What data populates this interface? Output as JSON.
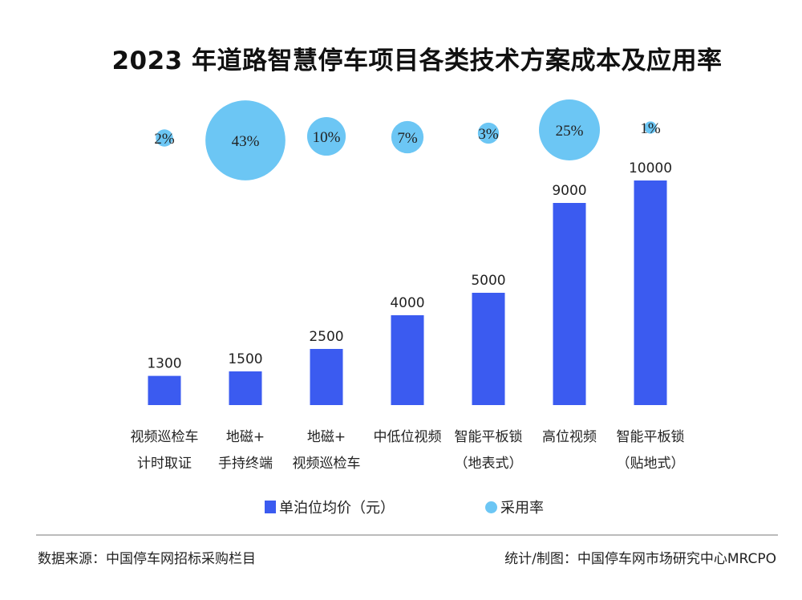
{
  "chart_data": {
    "type": "bar",
    "title": "2023 年道路智慧停车项目各类技术方案成本及应用率",
    "categories": [
      [
        "视频巡检车",
        "计时取证"
      ],
      [
        "地磁+",
        "手持终端"
      ],
      [
        "地磁+",
        "视频巡检车"
      ],
      [
        "中低位视频"
      ],
      [
        "智能平板锁",
        "（地表式）"
      ],
      [
        "高位视频"
      ],
      [
        "智能平板锁",
        "（贴地式）"
      ]
    ],
    "series": [
      {
        "name": "单泊位均价（元）",
        "type": "bar",
        "values": [
          1300,
          1500,
          2500,
          4000,
          5000,
          9000,
          10000
        ],
        "color": "#3b5bf0"
      },
      {
        "name": "采用率",
        "type": "bubble",
        "values": [
          2,
          43,
          10,
          7,
          3,
          25,
          1
        ],
        "unit": "%",
        "color": "#6cc6f4"
      }
    ],
    "ylim": [
      0,
      10000
    ],
    "grid": false,
    "legend_position": "bottom"
  },
  "legend": {
    "bar": "单泊位均价（元）",
    "bubble": "采用率"
  },
  "footer": {
    "source": "数据来源：中国停车网招标采购栏目",
    "credit": "统计/制图：中国停车网市场研究中心MRCPO"
  }
}
